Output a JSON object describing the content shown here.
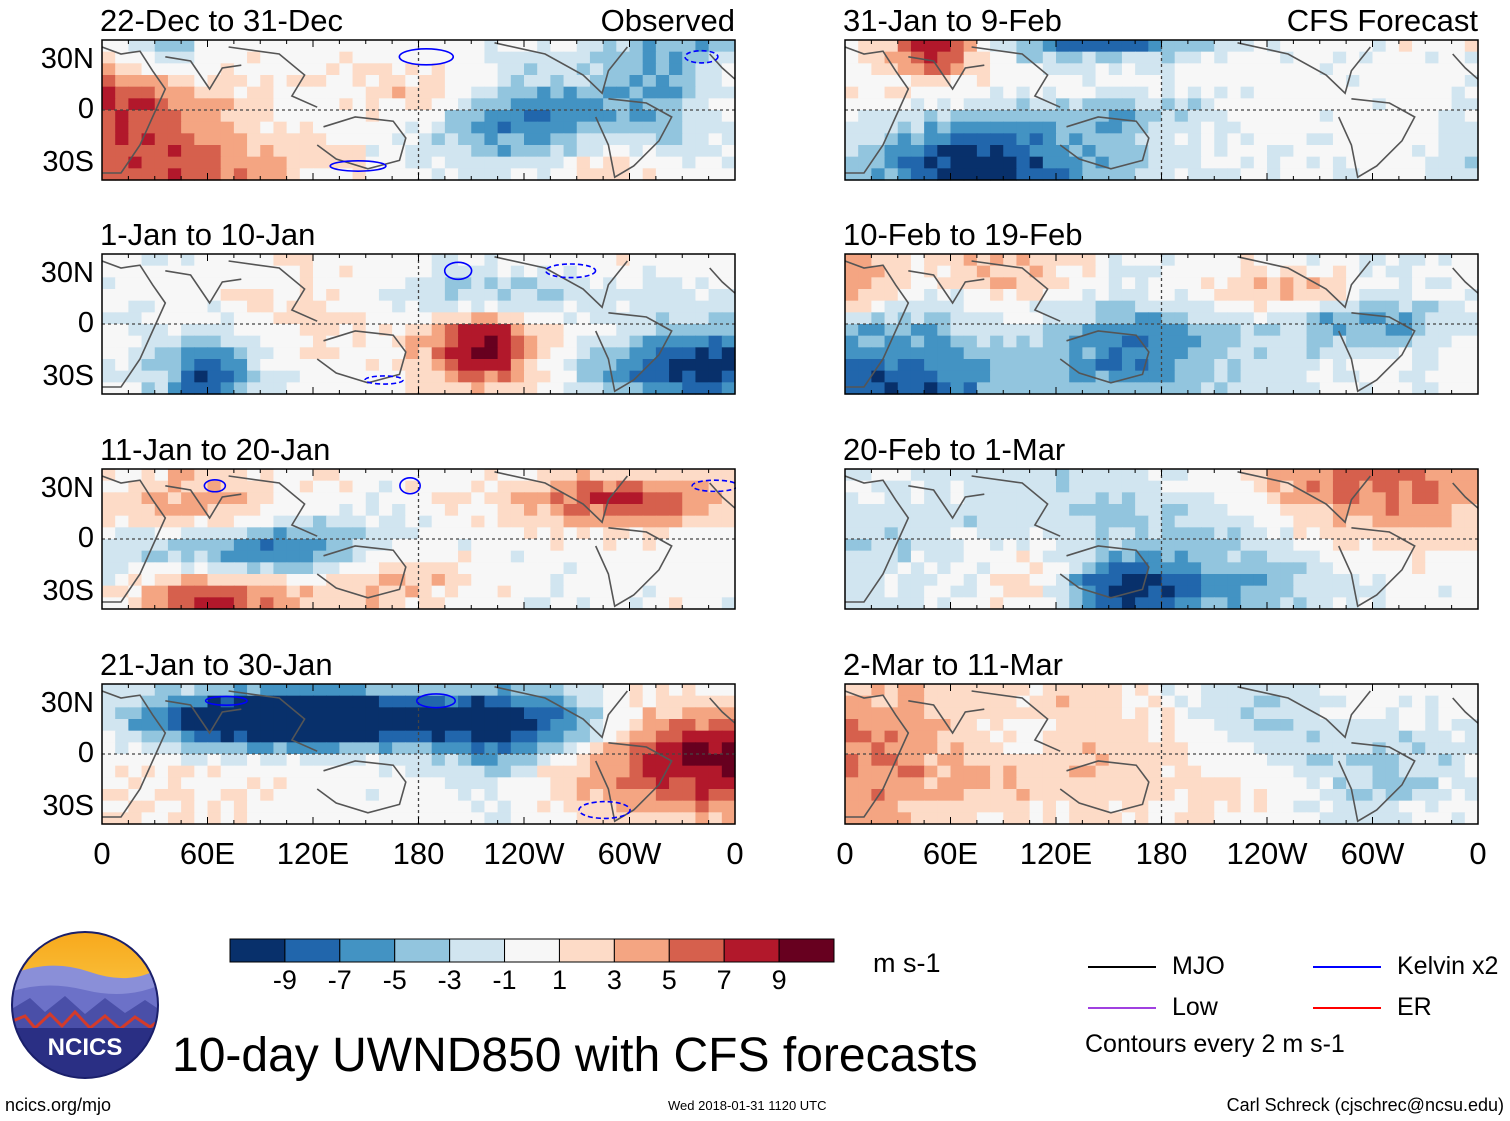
{
  "chart_data": [
    {
      "type": "heatmap",
      "panel": "observed-1",
      "title": "22-Dec to 31-Dec",
      "label": "Observed",
      "variable": "UWND850",
      "units": "m s-1",
      "lat_ticks": [
        "30N",
        "0",
        "30S"
      ],
      "lon_ticks": []
    },
    {
      "type": "heatmap",
      "panel": "observed-2",
      "title": "1-Jan to 10-Jan",
      "label": "",
      "lat_ticks": [
        "30N",
        "0",
        "30S"
      ],
      "lon_ticks": []
    },
    {
      "type": "heatmap",
      "panel": "observed-3",
      "title": "11-Jan to 20-Jan",
      "label": "",
      "lat_ticks": [
        "30N",
        "0",
        "30S"
      ],
      "lon_ticks": []
    },
    {
      "type": "heatmap",
      "panel": "observed-4",
      "title": "21-Jan to 30-Jan",
      "label": "",
      "lat_ticks": [
        "30N",
        "0",
        "30S"
      ],
      "lon_ticks": [
        "0",
        "60E",
        "120E",
        "180",
        "120W",
        "60W",
        "0"
      ]
    },
    {
      "type": "heatmap",
      "panel": "forecast-1",
      "title": "31-Jan to 9-Feb",
      "label": "CFS Forecast",
      "lat_ticks": [],
      "lon_ticks": []
    },
    {
      "type": "heatmap",
      "panel": "forecast-2",
      "title": "10-Feb to 19-Feb",
      "label": "",
      "lat_ticks": [],
      "lon_ticks": []
    },
    {
      "type": "heatmap",
      "panel": "forecast-3",
      "title": "20-Feb to 1-Mar",
      "label": "",
      "lat_ticks": [],
      "lon_ticks": []
    },
    {
      "type": "heatmap",
      "panel": "forecast-4",
      "title": "2-Mar to 11-Mar",
      "label": "",
      "lat_ticks": [],
      "lon_ticks": [
        "0",
        "60E",
        "120E",
        "180",
        "120W",
        "60W",
        "0"
      ]
    }
  ],
  "colorbar": {
    "tick_labels": [
      "-9",
      "-7",
      "-5",
      "-3",
      "-1",
      "1",
      "3",
      "5",
      "7",
      "9"
    ],
    "units": "m s-1",
    "colors": [
      "#08306b",
      "#2166ac",
      "#4393c3",
      "#92c5de",
      "#d1e5f0",
      "#f7f7f7",
      "#fddbc7",
      "#f4a582",
      "#d6604d",
      "#b2182b",
      "#67001f"
    ]
  },
  "legend": {
    "items": [
      {
        "label": "MJO",
        "color": "#000000"
      },
      {
        "label": "Kelvin x2",
        "color": "#0000ff"
      },
      {
        "label": "Low",
        "color": "#a040e0"
      },
      {
        "label": "ER",
        "color": "#ff0000"
      }
    ],
    "note": "Contours every 2 m s-1"
  },
  "footer": {
    "title": "10-day UWND850 with CFS forecasts",
    "url": "ncics.org/mjo",
    "timestamp": "Wed 2018-01-31 1120 UTC",
    "author": "Carl Schreck (cjschrec@ncsu.edu)",
    "logo_text": "NCICS"
  }
}
